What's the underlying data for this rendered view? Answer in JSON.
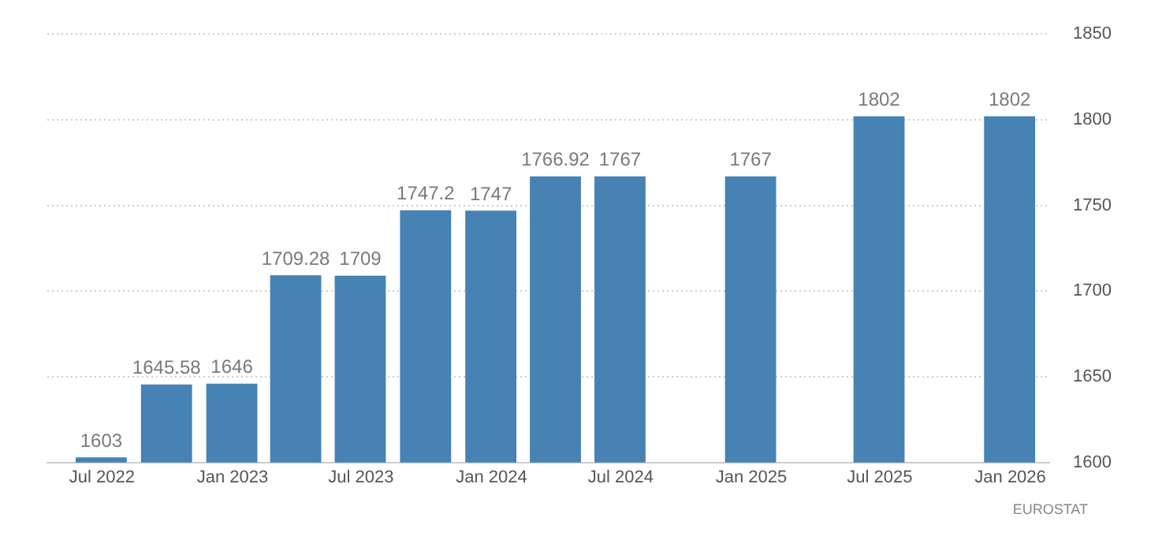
{
  "chart_data": {
    "type": "bar",
    "x": [
      "2022-06-30",
      "2022-09-30",
      "2022-12-31",
      "2023-03-31",
      "2023-06-30",
      "2023-09-30",
      "2023-12-31",
      "2024-03-31",
      "2024-06-30",
      "2024-12-31",
      "2025-06-30",
      "2025-12-31"
    ],
    "values": [
      1603,
      1645.58,
      1646,
      1709.28,
      1709,
      1747.2,
      1747,
      1766.92,
      1767,
      1767,
      1802,
      1802
    ],
    "color": "#4682b4",
    "xlim": [
      "2022-04-15",
      "2026-02-25"
    ],
    "xticks": [
      {
        "value": "2022-07",
        "label": "Jul 2022"
      },
      {
        "value": "2023-01",
        "label": "Jan 2023"
      },
      {
        "value": "2023-07",
        "label": "Jul 2023"
      },
      {
        "value": "2024-01",
        "label": "Jan 2024"
      },
      {
        "value": "2024-07",
        "label": "Jul 2024"
      },
      {
        "value": "2025-01",
        "label": "Jan 2025"
      },
      {
        "value": "2025-07",
        "label": "Jul 2025"
      },
      {
        "value": "2026-01",
        "label": "Jan 2026"
      }
    ],
    "ylim": [
      1600,
      1850
    ],
    "yticks": [
      1600,
      1650,
      1700,
      1750,
      1800,
      1850
    ],
    "grid": "y",
    "data_labels": true,
    "annotations": [
      "EUROSTAT"
    ]
  }
}
